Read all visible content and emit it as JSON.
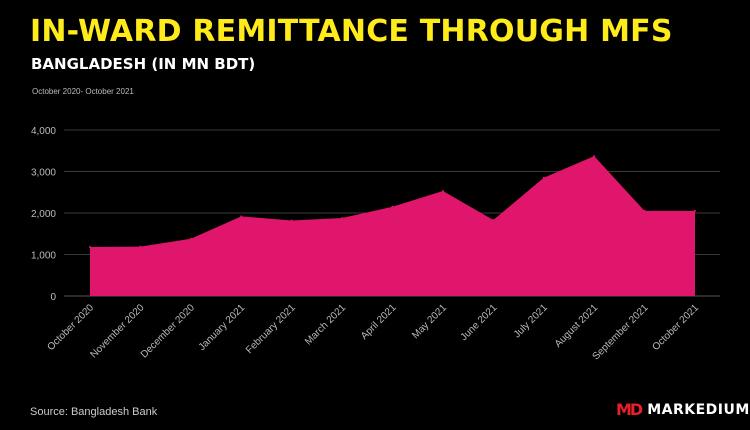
{
  "chart_data": {
    "type": "area",
    "title": "IN-WARD REMITTANCE THROUGH MFS",
    "subtitle": "BANGLADESH (IN MN BDT)",
    "period": "October 2020- October 2021",
    "categories": [
      "October 2020",
      "November 2020",
      "December 2020",
      "January 2021",
      "February 2021",
      "March 2021",
      "April 2021",
      "May 2021",
      "June 2021",
      "July 2021",
      "August 2021",
      "September 2021",
      "October 2021"
    ],
    "values": [
      1180,
      1190,
      1380,
      1920,
      1820,
      1880,
      2150,
      2530,
      1830,
      2850,
      3370,
      2050,
      2050
    ],
    "ylim": [
      0,
      4000
    ],
    "yticks": [
      "0",
      "1,000",
      "2,000",
      "3,000",
      "4,000"
    ],
    "grid": true,
    "legend": "none",
    "area_color": "#e0156c",
    "grid_color": "#3a3a3a"
  },
  "source": "Source: Bangladesh Bank",
  "brand": {
    "mark": "MD",
    "name": "MARKEDIUM"
  }
}
